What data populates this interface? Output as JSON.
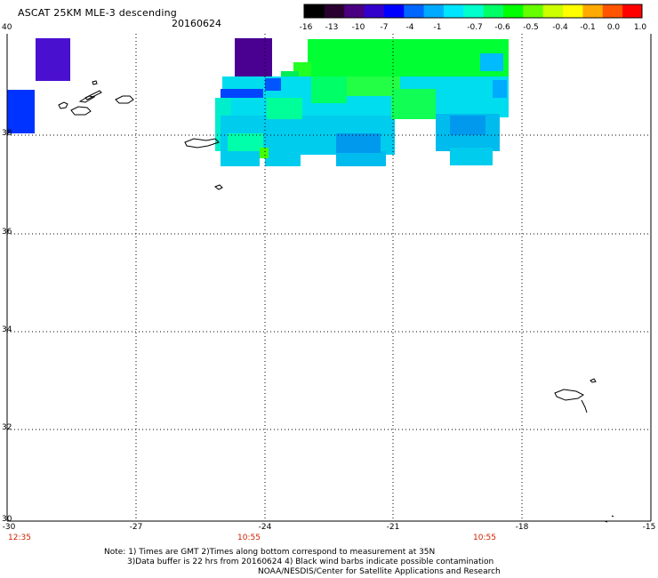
{
  "header": {
    "title": "ASCAT 25KM MLE-3 descending",
    "date": "20160624"
  },
  "colorbar": {
    "ticks": [
      "-16",
      "-13",
      "-10",
      "-7",
      "-4",
      "-1",
      "-0.7",
      "-0.6",
      "-0.5",
      "-0.4",
      "-0.1",
      "0.0",
      "1.0"
    ],
    "colors": [
      "#000000",
      "#2a0030",
      "#4a0080",
      "#3300cc",
      "#0000ff",
      "#0066ff",
      "#00aaff",
      "#00e5ff",
      "#00ffcc",
      "#00ff66",
      "#00ff00",
      "#66ff00",
      "#ccff00",
      "#ffff00",
      "#ffaa00",
      "#ff5500",
      "#ff0000"
    ]
  },
  "axes": {
    "y_labels": [
      "40",
      "38",
      "36",
      "34",
      "32",
      "30"
    ],
    "x_labels": [
      "-30",
      "-27",
      "-24",
      "-21",
      "-18",
      "-15"
    ],
    "time_labels": [
      "12:35",
      "10:55",
      "10:55"
    ]
  },
  "notes": {
    "line1": "Note: 1) Times are GMT 2)Times along bottom correspond to measurement at 35N",
    "line2": "3)Data buffer is 22 hrs from 20160624 4) Black wind barbs indicate possible contamination",
    "line3": "NOAA/NESDIS/Center for Satellite Applications and Research"
  }
}
